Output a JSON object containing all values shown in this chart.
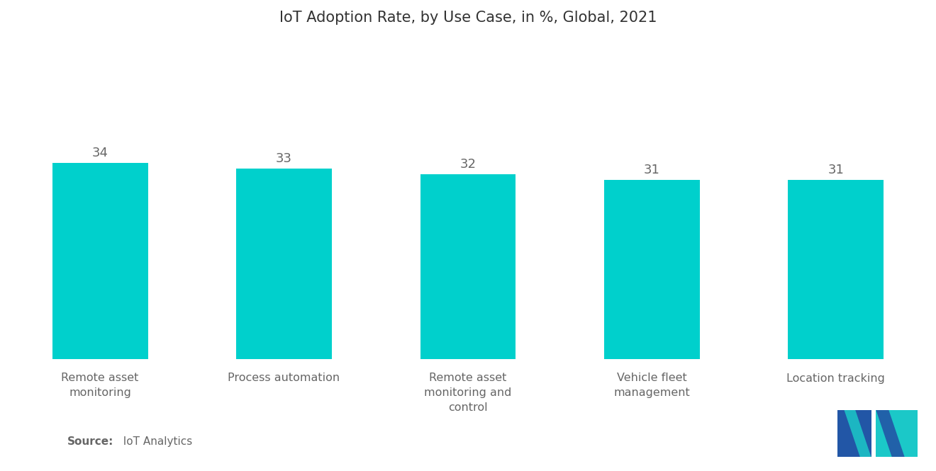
{
  "title": "IoT Adoption Rate, by Use Case, in %, Global, 2021",
  "categories": [
    "Remote asset\nmonitoring",
    "Process automation",
    "Remote asset\nmonitoring and\ncontrol",
    "Vehicle fleet\nmanagement",
    "Location tracking"
  ],
  "values": [
    34,
    33,
    32,
    31,
    31
  ],
  "bar_color": "#00D0CC",
  "value_color": "#666666",
  "title_color": "#333333",
  "label_color": "#666666",
  "background_color": "#FFFFFF",
  "source_bold": "Source:",
  "source_normal": "  IoT Analytics",
  "title_fontsize": 15,
  "value_fontsize": 13,
  "label_fontsize": 11.5,
  "source_fontsize": 11,
  "ylim": [
    0,
    55
  ],
  "bar_width": 0.52,
  "logo_dark_blue": "#2256A6",
  "logo_teal": "#1BC8C8",
  "logo_mid": "#5090C8"
}
